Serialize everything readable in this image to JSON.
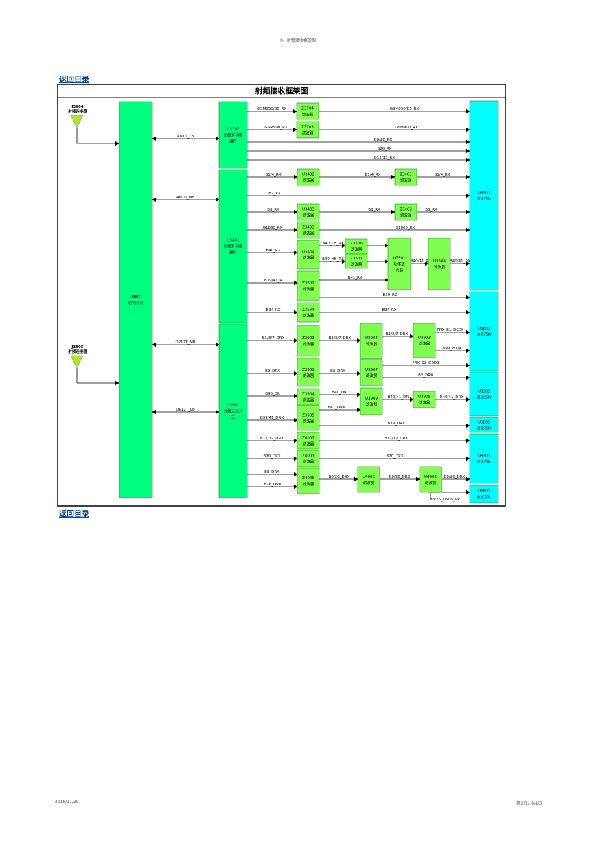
{
  "header": {
    "doc_title": "9、射频接收框架图"
  },
  "nav": {
    "back_label_top": "返回目录",
    "back_label_bottom": "返回目录"
  },
  "footer": {
    "date": "2016/11/29",
    "page": "第1页，共1页"
  },
  "diagram": {
    "title": "射频接收框架图",
    "colors": {
      "block_green": "#00FF80",
      "block_filter": "#80FF50",
      "block_cyan": "#00FFFF",
      "line": "#000000",
      "frame": "#000000"
    },
    "connectors": [
      {
        "id": "j3804",
        "ref": "J3804",
        "name": "射频连接器"
      },
      {
        "id": "j3805",
        "ref": "J3805",
        "name": "射频连接器"
      }
    ],
    "u3801": {
      "ref": "U3801",
      "name": "射频开关"
    },
    "ports": [
      "ANT0_LB",
      "ANT0_MB",
      "DP12T_MB",
      "DP12T_LB"
    ],
    "u3702": {
      "ref": "U3702",
      "name": "射频多功能",
      "name2": "器件"
    },
    "u3401": {
      "ref": "U3401",
      "name": "射频多功能",
      "name2": "器件"
    },
    "u3901": {
      "ref": "U3901",
      "name": "分集天线开",
      "name2": "关"
    },
    "filters": [
      {
        "id": "z3704",
        "ref": "Z3704",
        "name": "滤波器"
      },
      {
        "id": "z3703",
        "ref": "Z3703",
        "name": "滤波器"
      },
      {
        "id": "u3402",
        "ref": "U3402",
        "name": "滤波器"
      },
      {
        "id": "z3401",
        "ref": "Z3401",
        "name": "滤波器"
      },
      {
        "id": "u3403",
        "ref": "U3403",
        "name": "滤波器"
      },
      {
        "id": "z3402",
        "ref": "Z3402",
        "name": "滤波器"
      },
      {
        "id": "z3403",
        "ref": "Z3403",
        "name": "滤波器"
      },
      {
        "id": "u3404",
        "ref": "U3404",
        "name": "滤波器"
      },
      {
        "id": "z3506",
        "ref": "Z3506",
        "name": "滤波器"
      },
      {
        "id": "z3501",
        "ref": "Z3501",
        "name": "滤波器"
      },
      {
        "id": "u3504",
        "ref": "U3504",
        "name": "滤波器"
      },
      {
        "id": "z3602",
        "ref": "Z3602",
        "name": "滤波器"
      },
      {
        "id": "z3604",
        "ref": "Z3604",
        "name": "滤波器"
      },
      {
        "id": "z3903",
        "ref": "Z3903",
        "name": "滤波器"
      },
      {
        "id": "u3904",
        "ref": "U3904",
        "name": "滤波器"
      },
      {
        "id": "u3903",
        "ref": "U3903",
        "name": "滤波器"
      },
      {
        "id": "z3901",
        "ref": "Z3901",
        "name": "滤波器"
      },
      {
        "id": "u3907",
        "ref": "U3907",
        "name": "滤波器"
      },
      {
        "id": "z3904",
        "ref": "Z3904",
        "name": "滤波器"
      },
      {
        "id": "u3909",
        "ref": "U3909",
        "name": "滤波器"
      },
      {
        "id": "u3905",
        "ref": "U3905",
        "name": "滤波器"
      },
      {
        "id": "z3905",
        "ref": "Z3905",
        "name": "滤波器"
      },
      {
        "id": "z4003",
        "ref": "Z4003",
        "name": "滤波器"
      },
      {
        "id": "z4001",
        "ref": "Z4001",
        "name": "滤波器"
      },
      {
        "id": "z4006",
        "ref": "Z4006",
        "name": "滤波器"
      },
      {
        "id": "u4002",
        "ref": "U4002",
        "name": "滤波器"
      },
      {
        "id": "u4001",
        "ref": "U4001",
        "name": "滤波器"
      }
    ],
    "amp": {
      "ref": "U3501",
      "name1": "功率放",
      "name2": "大器"
    },
    "transceivers": [
      {
        "id": "t1",
        "ref": "U3301",
        "name": "收发芯片"
      },
      {
        "id": "t2",
        "ref": "U5801",
        "name": "收发芯片"
      },
      {
        "id": "t3",
        "ref": "U3301",
        "name": "收发芯片"
      },
      {
        "id": "t4",
        "ref": "U5801",
        "name": "收发芯片"
      },
      {
        "id": "t5",
        "ref": "U3301",
        "name": "收发芯片"
      },
      {
        "id": "t6",
        "ref": "U5801",
        "name": "收发芯片"
      }
    ],
    "signals": [
      "GSM850/B5_RX",
      "GSM850/B5_RX",
      "GSM900_RX",
      "GSM900_RX",
      "B8/26_RX",
      "B20_RX",
      "B12/17_RX",
      "B1/4_RX",
      "B1/4_RX",
      "B1/4_RX",
      "B2_RX",
      "B3_RX",
      "B3_RX",
      "B3_RX",
      "G1800_RX",
      "G1800_RX",
      "B40_RX",
      "B40_LB_RX",
      "B40_HB_RX",
      "B40/41_R",
      "B40/41_RX",
      "B41_RX",
      "B39/41_R",
      "B39_RX",
      "B34_RX",
      "B34_RX",
      "B1/3/7_DRX",
      "B1/3/7_DRX",
      "B1/3/7_DRX",
      "PRX_B1_DSDS",
      "DRX_B1/4",
      "B2_DRX",
      "B2_DRX",
      "PRX_B2_DSDS",
      "B2_DRX",
      "B40_DR",
      "B40_DR",
      "B41_DRX",
      "B40/41_DR",
      "B40/41_DRX",
      "B39/41_DRX",
      "B39_DRX",
      "B12/17_DRX",
      "B12/17_DRX",
      "B20_DRX",
      "B20_DRX",
      "B8_DRX",
      "B26_DRX",
      "B8/26_DRX",
      "B8/26_DRX",
      "B8/26_DRX",
      "B8/26_DSDS_PR"
    ]
  }
}
